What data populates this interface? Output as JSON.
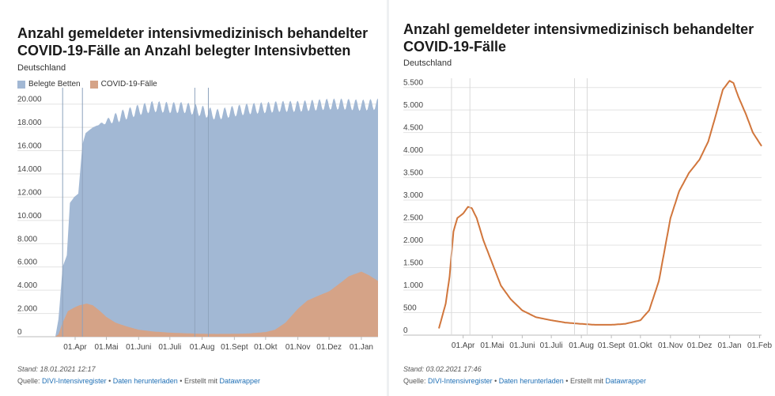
{
  "left": {
    "title": "Anzahl gemeldeter intensivmedizinisch behandelter COVID-19-Fälle an Anzahl belegter Intensivbetten",
    "subtitle": "Deutschland",
    "legend": [
      {
        "name": "Belegte Betten",
        "color": "#a2b8d4"
      },
      {
        "name": "COVID-19-Fälle",
        "color": "#d5a387"
      }
    ],
    "footer": {
      "stand": "Stand: 18.01.2021 12:17",
      "source_prefix": "Quelle:",
      "source_link": "DIVI-Intensivregister",
      "sep1": " • ",
      "download_link": "Daten herunterladen",
      "sep2": " • Erstellt mit ",
      "tool_link": "Datawrapper"
    }
  },
  "right": {
    "title": "Anzahl gemeldeter intensivmedizinisch behandelter COVID-19-Fälle",
    "subtitle": "Deutschland",
    "footer": {
      "stand": "Stand: 03.02.2021 17:46",
      "source_prefix": "Quelle:",
      "source_link": "DIVI-Intensivregister",
      "sep1": " • ",
      "download_link": "Daten herunterladen",
      "sep2": " • Erstellt mit ",
      "tool_link": "Datawrapper"
    }
  },
  "chart_data": [
    {
      "type": "area",
      "title": "Anzahl gemeldeter intensivmedizinisch behandelter COVID-19-Fälle an Anzahl belegter Intensivbetten",
      "subtitle": "Deutschland",
      "ylim": [
        0,
        21000
      ],
      "yticks": [
        0,
        2000,
        4000,
        6000,
        8000,
        10000,
        12000,
        14000,
        16000,
        18000,
        20000
      ],
      "ytick_labels": [
        "0",
        "2.000",
        "4.000",
        "6.000",
        "8.000",
        "10.000",
        "12.000",
        "14.000",
        "16.000",
        "18.000",
        "20.000"
      ],
      "x_start": "2020-03-13",
      "x_end": "2021-01-17",
      "xticks": [
        "2020-04-01",
        "2020-05-01",
        "2020-06-01",
        "2020-07-01",
        "2020-08-01",
        "2020-09-01",
        "2020-10-01",
        "2020-11-01",
        "2020-12-01",
        "2021-01-01"
      ],
      "xtick_labels": [
        "01.Apr",
        "01.Mai",
        "01.Juni",
        "01.Juli",
        "01.Aug",
        "01.Sept",
        "01.Okt",
        "01.Nov",
        "01.Dez",
        "01.Jan"
      ],
      "reference_lines": [
        "2020-03-20",
        "2020-04-08",
        "2020-07-25",
        "2020-08-07"
      ],
      "grid": true,
      "legend_position": "top-left",
      "series": [
        {
          "name": "Belegte Betten",
          "color": "#a2b8d4",
          "weekly_oscillation": 500,
          "points": [
            [
              "2020-03-13",
              0
            ],
            [
              "2020-03-16",
              1500
            ],
            [
              "2020-03-20",
              6000
            ],
            [
              "2020-03-24",
              7000
            ],
            [
              "2020-03-27",
              11500
            ],
            [
              "2020-03-31",
              12000
            ],
            [
              "2020-04-04",
              12300
            ],
            [
              "2020-04-08",
              16500
            ],
            [
              "2020-04-11",
              17500
            ],
            [
              "2020-04-18",
              18000
            ],
            [
              "2020-05-01",
              18500
            ],
            [
              "2020-05-15",
              19000
            ],
            [
              "2020-06-01",
              19500
            ],
            [
              "2020-06-15",
              19800
            ],
            [
              "2020-07-01",
              19700
            ],
            [
              "2020-07-15",
              19700
            ],
            [
              "2020-08-01",
              19400
            ],
            [
              "2020-08-15",
              19100
            ],
            [
              "2020-09-01",
              19400
            ],
            [
              "2020-09-15",
              19600
            ],
            [
              "2020-10-01",
              19700
            ],
            [
              "2020-10-15",
              19800
            ],
            [
              "2020-11-01",
              19800
            ],
            [
              "2020-11-15",
              19900
            ],
            [
              "2020-12-01",
              20000
            ],
            [
              "2020-12-15",
              20000
            ],
            [
              "2021-01-01",
              19900
            ],
            [
              "2021-01-17",
              20000
            ]
          ]
        },
        {
          "name": "COVID-19-Fälle",
          "color": "#d5a387",
          "points": [
            [
              "2020-03-13",
              0
            ],
            [
              "2020-03-16",
              200
            ],
            [
              "2020-03-20",
              1200
            ],
            [
              "2020-03-25",
              2200
            ],
            [
              "2020-03-31",
              2500
            ],
            [
              "2020-04-05",
              2700
            ],
            [
              "2020-04-12",
              2850
            ],
            [
              "2020-04-18",
              2700
            ],
            [
              "2020-04-25",
              2200
            ],
            [
              "2020-05-01",
              1700
            ],
            [
              "2020-05-10",
              1200
            ],
            [
              "2020-05-20",
              900
            ],
            [
              "2020-06-01",
              600
            ],
            [
              "2020-06-15",
              450
            ],
            [
              "2020-07-01",
              350
            ],
            [
              "2020-07-15",
              300
            ],
            [
              "2020-08-01",
              250
            ],
            [
              "2020-08-15",
              240
            ],
            [
              "2020-09-01",
              250
            ],
            [
              "2020-09-15",
              280
            ],
            [
              "2020-10-01",
              400
            ],
            [
              "2020-10-10",
              600
            ],
            [
              "2020-10-20",
              1200
            ],
            [
              "2020-11-01",
              2400
            ],
            [
              "2020-11-10",
              3100
            ],
            [
              "2020-11-20",
              3500
            ],
            [
              "2020-12-01",
              3900
            ],
            [
              "2020-12-10",
              4500
            ],
            [
              "2020-12-20",
              5200
            ],
            [
              "2021-01-01",
              5600
            ],
            [
              "2021-01-08",
              5300
            ],
            [
              "2021-01-17",
              4800
            ]
          ]
        }
      ]
    },
    {
      "type": "line",
      "title": "Anzahl gemeldeter intensivmedizinisch behandelter COVID-19-Fälle",
      "subtitle": "Deutschland",
      "ylim": [
        0,
        5600
      ],
      "yticks": [
        0,
        500,
        1000,
        1500,
        2000,
        2500,
        3000,
        3500,
        4000,
        4500,
        5000,
        5500
      ],
      "ytick_labels": [
        "0",
        "500",
        "1.000",
        "1.500",
        "2.000",
        "2.500",
        "3.000",
        "3.500",
        "4.000",
        "4.500",
        "5.000",
        "5.500"
      ],
      "x_start": "2020-03-07",
      "x_end": "2021-02-03",
      "xticks": [
        "2020-04-01",
        "2020-05-01",
        "2020-06-01",
        "2020-07-01",
        "2020-08-01",
        "2020-09-01",
        "2020-10-01",
        "2020-11-01",
        "2020-12-01",
        "2021-01-01",
        "2021-02-01"
      ],
      "xtick_labels": [
        "01.Apr",
        "01.Mai",
        "01.Juni",
        "01.Juli",
        "01.Aug",
        "01.Sept",
        "01.Okt",
        "01.Nov",
        "01.Dez",
        "01.Jan",
        "01.Feb"
      ],
      "reference_lines": [
        "2020-03-20",
        "2020-04-08",
        "2020-07-25",
        "2020-08-07"
      ],
      "grid": true,
      "series": [
        {
          "name": "COVID-19-Fälle",
          "color": "#d1763c",
          "points": [
            [
              "2020-03-07",
              150
            ],
            [
              "2020-03-14",
              700
            ],
            [
              "2020-03-18",
              1300
            ],
            [
              "2020-03-22",
              2300
            ],
            [
              "2020-03-26",
              2600
            ],
            [
              "2020-04-01",
              2700
            ],
            [
              "2020-04-06",
              2850
            ],
            [
              "2020-04-10",
              2820
            ],
            [
              "2020-04-15",
              2600
            ],
            [
              "2020-04-22",
              2100
            ],
            [
              "2020-05-01",
              1600
            ],
            [
              "2020-05-10",
              1100
            ],
            [
              "2020-05-20",
              800
            ],
            [
              "2020-06-01",
              550
            ],
            [
              "2020-06-15",
              400
            ],
            [
              "2020-07-01",
              330
            ],
            [
              "2020-07-15",
              280
            ],
            [
              "2020-08-01",
              250
            ],
            [
              "2020-08-15",
              230
            ],
            [
              "2020-09-01",
              230
            ],
            [
              "2020-09-15",
              250
            ],
            [
              "2020-10-01",
              330
            ],
            [
              "2020-10-10",
              550
            ],
            [
              "2020-10-20",
              1200
            ],
            [
              "2020-11-01",
              2600
            ],
            [
              "2020-11-10",
              3200
            ],
            [
              "2020-11-20",
              3600
            ],
            [
              "2020-12-01",
              3900
            ],
            [
              "2020-12-10",
              4300
            ],
            [
              "2020-12-18",
              4900
            ],
            [
              "2020-12-25",
              5450
            ],
            [
              "2021-01-01",
              5650
            ],
            [
              "2021-01-05",
              5600
            ],
            [
              "2021-01-10",
              5300
            ],
            [
              "2021-01-18",
              4900
            ],
            [
              "2021-01-25",
              4500
            ],
            [
              "2021-02-03",
              4200
            ]
          ]
        }
      ]
    }
  ]
}
